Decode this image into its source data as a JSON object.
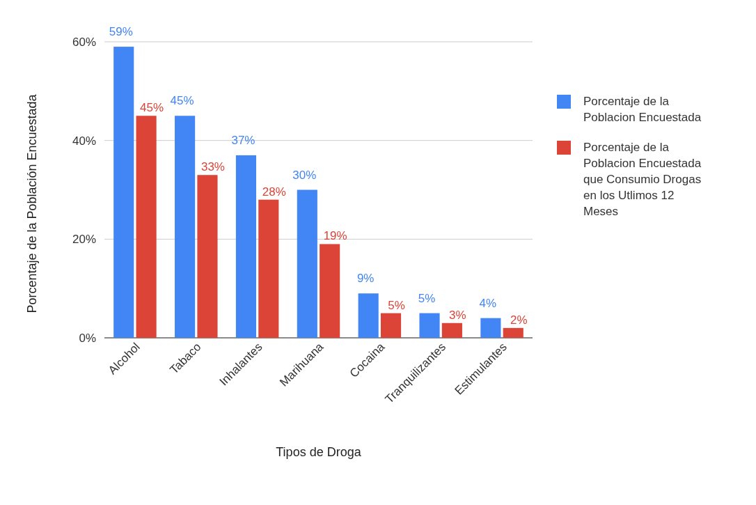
{
  "chart_data": {
    "type": "bar",
    "xlabel": "Tipos de Droga",
    "ylabel": "Porcentaje de la Población Encuestada",
    "categories": [
      "Alcohol",
      "Tabaco",
      "Inhalantes",
      "Marihuana",
      "Cocaina",
      "Tranquilizantes",
      "Estimulantes"
    ],
    "series": [
      {
        "name": "Porcentaje de la Poblacion Encuestada",
        "color": "#4285f4",
        "values": [
          59,
          45,
          37,
          30,
          9,
          5,
          4
        ],
        "value_labels": [
          "59%",
          "45%",
          "37%",
          "30%",
          "9%",
          "5%",
          "4%"
        ]
      },
      {
        "name": "Porcentaje de la Poblacion Encuestada que Consumio Drogas en los Utlimos 12 Meses",
        "color": "#db4437",
        "values": [
          45,
          33,
          28,
          19,
          5,
          3,
          2
        ],
        "value_labels": [
          "45%",
          "33%",
          "28%",
          "19%",
          "5%",
          "3%",
          "2%"
        ]
      }
    ],
    "ylim": [
      0,
      60
    ],
    "yticks": [
      {
        "value": 0,
        "label": "0%"
      },
      {
        "value": 20,
        "label": "20%"
      },
      {
        "value": 40,
        "label": "40%"
      },
      {
        "value": 60,
        "label": "60%"
      }
    ],
    "grid": "y",
    "legend": "right"
  }
}
